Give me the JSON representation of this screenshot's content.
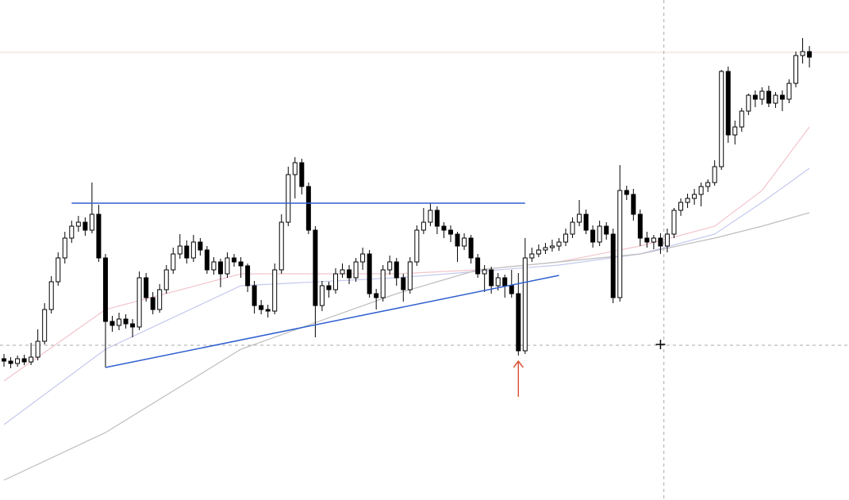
{
  "chart_data": {
    "type": "candlestick",
    "xlim": [
      -0.586,
      124.85
    ],
    "ylim": [
      0,
      630
    ],
    "up_color": "#ffffff",
    "down_color": "#000000",
    "ohlc": [
      [
        178,
        184,
        168,
        175
      ],
      [
        175,
        180,
        166,
        172
      ],
      [
        172,
        182,
        168,
        178
      ],
      [
        178,
        183,
        170,
        174
      ],
      [
        174,
        198,
        170,
        180
      ],
      [
        180,
        215,
        176,
        200
      ],
      [
        200,
        248,
        196,
        240
      ],
      [
        240,
        282,
        235,
        275
      ],
      [
        275,
        312,
        270,
        305
      ],
      [
        305,
        338,
        298,
        330
      ],
      [
        330,
        352,
        324,
        345
      ],
      [
        345,
        358,
        338,
        350
      ],
      [
        350,
        356,
        333,
        340
      ],
      [
        340,
        400,
        336,
        360
      ],
      [
        360,
        372,
        300,
        305
      ],
      [
        305,
        310,
        167,
        225
      ],
      [
        225,
        232,
        212,
        220
      ],
      [
        220,
        236,
        214,
        228
      ],
      [
        228,
        234,
        216,
        222
      ],
      [
        222,
        228,
        205,
        218
      ],
      [
        218,
        288,
        214,
        280
      ],
      [
        280,
        286,
        250,
        255
      ],
      [
        255,
        262,
        234,
        240
      ],
      [
        240,
        272,
        236,
        265
      ],
      [
        265,
        296,
        260,
        290
      ],
      [
        290,
        318,
        285,
        310
      ],
      [
        310,
        335,
        304,
        320
      ],
      [
        320,
        327,
        298,
        305
      ],
      [
        305,
        334,
        300,
        325
      ],
      [
        325,
        330,
        308,
        315
      ],
      [
        315,
        320,
        285,
        290
      ],
      [
        290,
        306,
        284,
        300
      ],
      [
        300,
        304,
        268,
        285
      ],
      [
        285,
        312,
        280,
        305
      ],
      [
        305,
        310,
        294,
        300
      ],
      [
        300,
        306,
        280,
        295
      ],
      [
        295,
        298,
        262,
        270
      ],
      [
        270,
        276,
        235,
        245
      ],
      [
        245,
        252,
        234,
        240
      ],
      [
        240,
        246,
        230,
        238
      ],
      [
        238,
        298,
        234,
        290
      ],
      [
        290,
        360,
        285,
        350
      ],
      [
        350,
        420,
        345,
        410
      ],
      [
        410,
        432,
        380,
        425
      ],
      [
        425,
        430,
        385,
        395
      ],
      [
        395,
        400,
        335,
        340
      ],
      [
        340,
        345,
        205,
        245
      ],
      [
        245,
        276,
        238,
        270
      ],
      [
        270,
        275,
        255,
        265
      ],
      [
        265,
        292,
        260,
        285
      ],
      [
        285,
        298,
        280,
        290
      ],
      [
        290,
        296,
        272,
        280
      ],
      [
        280,
        305,
        275,
        300
      ],
      [
        300,
        318,
        290,
        310
      ],
      [
        310,
        315,
        255,
        260
      ],
      [
        260,
        266,
        240,
        255
      ],
      [
        255,
        296,
        250,
        290
      ],
      [
        290,
        308,
        284,
        300
      ],
      [
        300,
        305,
        270,
        280
      ],
      [
        280,
        285,
        250,
        265
      ],
      [
        265,
        306,
        260,
        300
      ],
      [
        300,
        346,
        295,
        340
      ],
      [
        340,
        368,
        335,
        350
      ],
      [
        350,
        374,
        345,
        365
      ],
      [
        365,
        370,
        335,
        345
      ],
      [
        345,
        350,
        330,
        340
      ],
      [
        340,
        346,
        325,
        335
      ],
      [
        335,
        338,
        300,
        320
      ],
      [
        320,
        336,
        315,
        330
      ],
      [
        330,
        334,
        298,
        305
      ],
      [
        305,
        310,
        280,
        285
      ],
      [
        285,
        296,
        262,
        290
      ],
      [
        290,
        294,
        260,
        270
      ],
      [
        270,
        286,
        264,
        280
      ],
      [
        280,
        284,
        255,
        270
      ],
      [
        270,
        290,
        255,
        260
      ],
      [
        260,
        286,
        182,
        188
      ],
      [
        188,
        330,
        184,
        305
      ],
      [
        305,
        318,
        300,
        310
      ],
      [
        310,
        322,
        306,
        315
      ],
      [
        315,
        324,
        310,
        318
      ],
      [
        318,
        328,
        313,
        320
      ],
      [
        320,
        330,
        314,
        325
      ],
      [
        325,
        342,
        320,
        335
      ],
      [
        335,
        356,
        330,
        350
      ],
      [
        350,
        378,
        345,
        360
      ],
      [
        360,
        366,
        335,
        340
      ],
      [
        340,
        346,
        318,
        325
      ],
      [
        325,
        352,
        320,
        345
      ],
      [
        345,
        350,
        328,
        335
      ],
      [
        335,
        342,
        248,
        255
      ],
      [
        255,
        422,
        250,
        390
      ],
      [
        390,
        396,
        378,
        385
      ],
      [
        385,
        392,
        352,
        360
      ],
      [
        360,
        366,
        320,
        330
      ],
      [
        330,
        338,
        318,
        325
      ],
      [
        325,
        334,
        316,
        330
      ],
      [
        330,
        336,
        310,
        320
      ],
      [
        320,
        342,
        312,
        335
      ],
      [
        335,
        368,
        330,
        365
      ],
      [
        365,
        380,
        358,
        375
      ],
      [
        375,
        386,
        368,
        380
      ],
      [
        380,
        392,
        372,
        385
      ],
      [
        385,
        400,
        370,
        395
      ],
      [
        395,
        404,
        388,
        400
      ],
      [
        400,
        428,
        396,
        420
      ],
      [
        420,
        542,
        416,
        540
      ],
      [
        540,
        546,
        450,
        460
      ],
      [
        460,
        478,
        448,
        470
      ],
      [
        470,
        494,
        464,
        490
      ],
      [
        490,
        512,
        485,
        510
      ],
      [
        510,
        516,
        495,
        505
      ],
      [
        505,
        520,
        498,
        515
      ],
      [
        515,
        522,
        495,
        500
      ],
      [
        500,
        514,
        494,
        510
      ],
      [
        510,
        516,
        490,
        505
      ],
      [
        505,
        530,
        500,
        525
      ],
      [
        525,
        565,
        520,
        560
      ],
      [
        560,
        582,
        550,
        565
      ],
      [
        565,
        572,
        545,
        558
      ]
    ],
    "series": [
      {
        "color": "#f2c4cc",
        "x": [
          0,
          15,
          35,
          58,
          70,
          82,
          94,
          105,
          112,
          119
        ],
        "values": [
          150,
          240,
          285,
          285,
          290,
          300,
          320,
          345,
          390,
          470
        ]
      },
      {
        "color": "#c4c8ee",
        "x": [
          0,
          15,
          35,
          58,
          70,
          82,
          94,
          105,
          112,
          119
        ],
        "values": [
          95,
          190,
          270,
          280,
          288,
          296,
          310,
          335,
          375,
          418
        ]
      },
      {
        "color": "#bdbdbd",
        "x": [
          0,
          15,
          35,
          58,
          70,
          82,
          94,
          105,
          112,
          119
        ],
        "values": [
          25,
          85,
          190,
          260,
          290,
          300,
          310,
          330,
          345,
          362
        ]
      }
    ],
    "trendlines": [
      {
        "color": "#2f5fd0",
        "x": [
          10,
          77
        ],
        "values": [
          374,
          374
        ]
      },
      {
        "color": "#2f5fd0",
        "x": [
          15,
          82
        ],
        "values": [
          167,
          283
        ]
      }
    ],
    "price_line": {
      "color": "#f0d8d0",
      "value": 564
    },
    "crosshair": {
      "color": "#aaaaaa",
      "x": 97.5,
      "value": 195
    },
    "cursor": {
      "x": 97,
      "value": 196
    },
    "arrow": {
      "color": "#d9543a",
      "x": 76,
      "values": [
        130,
        175
      ]
    }
  }
}
